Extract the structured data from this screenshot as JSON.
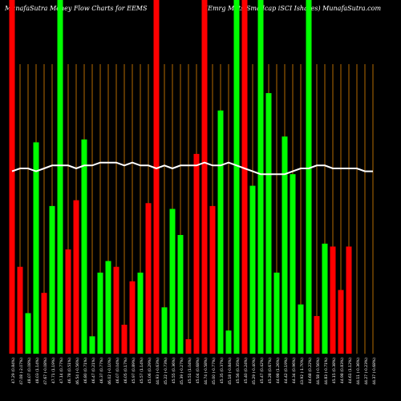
{
  "header": {
    "left_title": "MunafaSutra  Money Flow  Charts for EEMS",
    "right_title": "(Emrg Mkts Smallcap iSCI Ishares) MunafaSutra.com"
  },
  "colors": {
    "background": "#000000",
    "up": "#00ff00",
    "down": "#ff0000",
    "grid": "#b36a00",
    "line": "#ffffff",
    "text": "#ffffff"
  },
  "chart_data": {
    "type": "bar",
    "title": "MunafaSutra  Money Flow  Charts for EEMS",
    "subtitle": "(Emrg Mkts Smallcap iSCI Ishares) MunafaSutra.com",
    "ylim": [
      0,
      100
    ],
    "grid": true,
    "categories": [
      "47.29 (0.84%)",
      "47.08 (-2.07%)",
      "48.07 (0.08%)",
      "48.03 (1.14%)",
      "47.67 (-0.08%)",
      "47.71 (1.19%)",
      "47.14 (0.77%)",
      "46.78 (0.51%)",
      "46.54 (-0.56%)",
      "46.80 (0.71%)",
      "46.47 (0.21%)",
      "46.37 (0.77%)",
      "46.02 (-0.10%)",
      "46.07 (0.04%)",
      "46.05 (0.17%)",
      "45.97 (0.89%)",
      "45.57 (1.14%)",
      "45.06 (0.29%)",
      "44.93 (-0.63%)",
      "45.22 (-0.73%)",
      "45.55 (0.36%)",
      "45.39 (-0.27%)",
      "45.51 (1.04%)",
      "45.04 (0.68%)",
      "44.74 (-0.58%)",
      "45.00 (-0.77%)",
      "45.35 (0.37%)",
      "45.18 (-0.84%)",
      "45.56 (0.35%)",
      "45.40 (0.24%)",
      "45.29 (-0.40%)",
      "45.47 (0.42%)",
      "45.28 (0.67%)",
      "44.98 (1.26%)",
      "44.42 (0.19%)",
      "44.34 (0.96%)",
      "43.92 (-1.70%)",
      "44.68 (0.22%)",
      "44.58 (-0.56%)",
      "44.83 (-0.71%)",
      "45.15 (0.38%)",
      "44.98 (0.83%)",
      "44.61 (1.12%)",
      "44.11 (-0.36%)",
      "44.27 (-0.23%)",
      "44.37 (-0.68%)"
    ],
    "series": [
      {
        "values": [
          100,
          30,
          14,
          73,
          21,
          51,
          100,
          36,
          53,
          74,
          6,
          28,
          32,
          30,
          10,
          25,
          28,
          52,
          100,
          16,
          50,
          41,
          5,
          69,
          100,
          51,
          84,
          8,
          100,
          100,
          58,
          100,
          90,
          28,
          75,
          62,
          17,
          100,
          13,
          38,
          37,
          22,
          37,
          0,
          0,
          0
        ],
        "direction": [
          "down",
          "down",
          "up",
          "up",
          "down",
          "up",
          "up",
          "down",
          "down",
          "up",
          "up",
          "up",
          "up",
          "down",
          "down",
          "down",
          "up",
          "down",
          "down",
          "up",
          "up",
          "up",
          "down",
          "down",
          "down",
          "down",
          "up",
          "up",
          "up",
          "down",
          "up",
          "up",
          "up",
          "up",
          "up",
          "up",
          "up",
          "up",
          "down",
          "up",
          "down",
          "down",
          "down",
          "down",
          "down",
          "down"
        ]
      }
    ],
    "trend_line": [
      63,
      64,
      64,
      63,
      64,
      65,
      65,
      65,
      64,
      65,
      65,
      66,
      66,
      66,
      65,
      66,
      65,
      65,
      64,
      65,
      64,
      65,
      65,
      65,
      66,
      65,
      65,
      66,
      65,
      64,
      63,
      62,
      62,
      62,
      62,
      63,
      64,
      64,
      65,
      65,
      64,
      64,
      64,
      64,
      63,
      63
    ]
  }
}
